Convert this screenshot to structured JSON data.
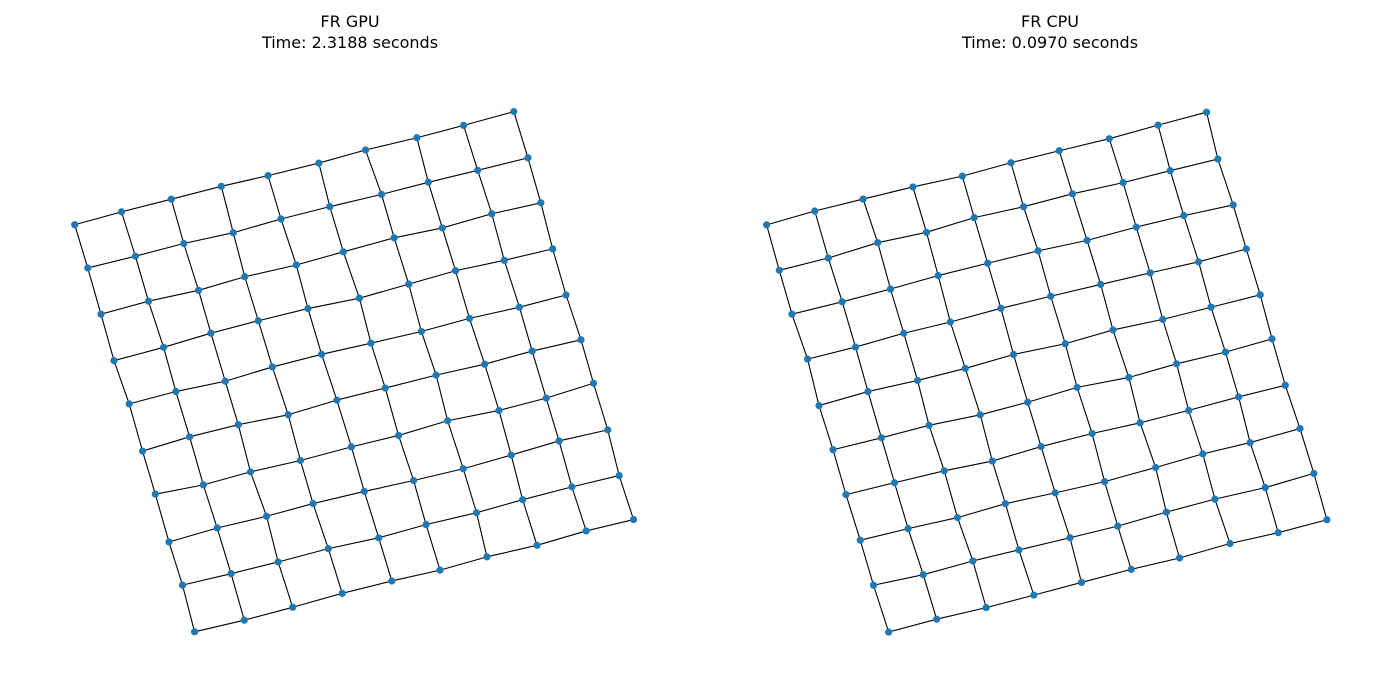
{
  "panels": [
    {
      "title": "FR GPU",
      "subtitle": "Time: 2.3188 seconds"
    },
    {
      "title": "FR CPU",
      "subtitle": "Time: 0.0970 seconds"
    }
  ],
  "graph": {
    "type": "grid",
    "rows": 10,
    "cols": 10,
    "node_color": "#1f77b4",
    "edge_color": "#000000"
  }
}
